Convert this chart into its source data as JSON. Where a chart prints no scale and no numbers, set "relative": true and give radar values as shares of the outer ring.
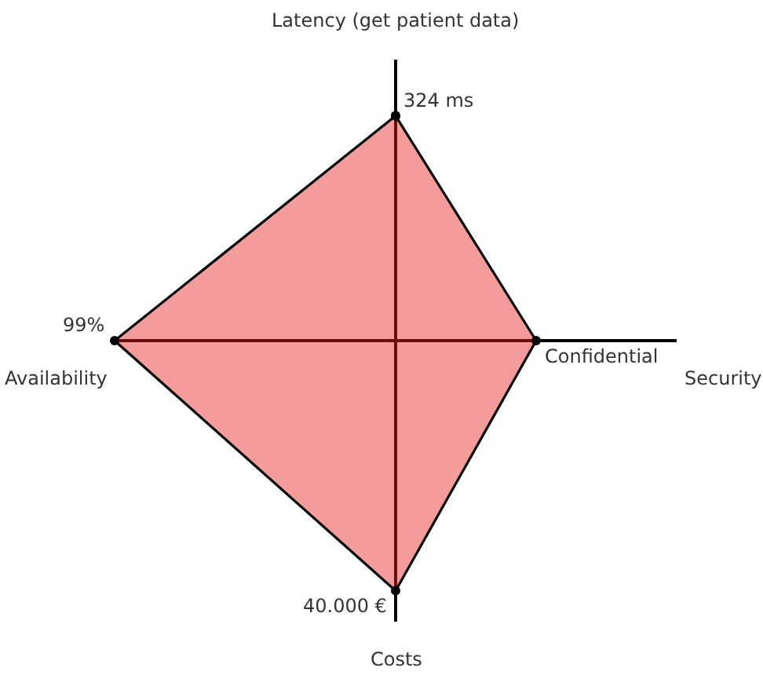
{
  "chart_data": {
    "type": "radar",
    "relative": true,
    "categories": [
      "Latency (get patient data)",
      "Security",
      "Costs",
      "Availability"
    ],
    "series": [
      {
        "color": "#f49b9b",
        "values": [
          0.8,
          0.5,
          0.89,
          1.0
        ]
      }
    ],
    "annotations": [
      {
        "text": "324 ms",
        "x": "Latency (get patient data)"
      },
      {
        "text": "Confidential",
        "x": "Security"
      },
      {
        "text": "40.000 €",
        "x": "Costs"
      },
      {
        "text": "99%",
        "x": "Availability"
      }
    ],
    "grid": "x",
    "marker": "circle"
  }
}
